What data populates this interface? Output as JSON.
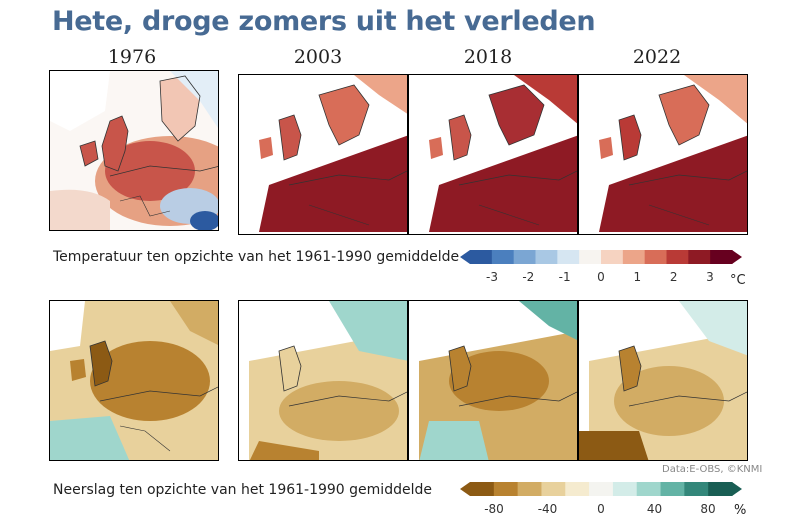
{
  "title": "Hete, droge zomers uit het verleden",
  "years": [
    "1976",
    "2003",
    "2018",
    "2022"
  ],
  "temperature": {
    "caption": "Temperatuur ten opzichte van het 1961-1990 gemiddelde",
    "unit": "°C",
    "ticks": [
      "-3",
      "-2",
      "-1",
      "0",
      "1",
      "2",
      "3"
    ],
    "colors": [
      "#2c5aa0",
      "#4b7fbe",
      "#7ba6d3",
      "#a9c8e4",
      "#d6e6f2",
      "#f7f4f0",
      "#f6d3c1",
      "#eca589",
      "#d86d58",
      "#b93a36",
      "#8e1a24",
      "#67001f"
    ]
  },
  "precipitation": {
    "caption": "Neerslag ten opzichte van het 1961-1990 gemiddelde",
    "unit": "%",
    "ticks": [
      "-80",
      "-40",
      "0",
      "40",
      "80"
    ],
    "colors": [
      "#8c5a14",
      "#b88230",
      "#d2ac64",
      "#e8d19c",
      "#f5ebcf",
      "#f4f4f0",
      "#d3ece8",
      "#9fd6cc",
      "#63b3a5",
      "#33877a",
      "#195e54"
    ]
  },
  "credit": "Data:E-OBS, ©KNMI"
}
